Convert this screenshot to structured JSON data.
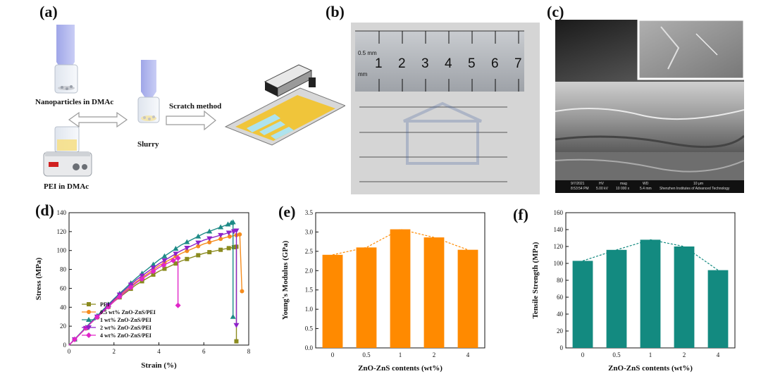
{
  "panels": {
    "a": {
      "label": "(a)",
      "nanoparticles": "Nanoparticles in DMAc",
      "pei": "PEI in DMAc",
      "slurry": "Slurry",
      "scratch": "Scratch method"
    },
    "b": {
      "label": "(b)",
      "ruler_unit_top": "0.5 mm",
      "ruler_unit_bottom": "mm",
      "ruler_numbers": [
        "1",
        "2",
        "3",
        "4",
        "5",
        "6",
        "7"
      ]
    },
    "c": {
      "label": "(c)",
      "sem_date": "9/7/2021",
      "sem_time": "8:53:54 PM",
      "sem_hv_label": "HV",
      "sem_hv": "5.00 kV",
      "sem_mag_label": "mag",
      "sem_mag": "10 000 x",
      "sem_wd_label": "WD",
      "sem_wd": "5.4 mm",
      "sem_scale": "10 μm",
      "sem_institute": "Shenzhen Institutes of Advanced Technology"
    },
    "d": {
      "label": "(d)"
    },
    "e": {
      "label": "(e)"
    },
    "f": {
      "label": "(f)"
    }
  },
  "colors": {
    "pei": "#8a8a1e",
    "c05": "#f58c1e",
    "c1": "#1d8a86",
    "c2": "#8e22c9",
    "c4": "#e026c8",
    "orange_bar": "#ff8a00",
    "teal_bar": "#138a80"
  },
  "chart_data": [
    {
      "id": "d",
      "type": "line",
      "xlabel": "Strain (%)",
      "ylabel": "Stress (MPa)",
      "xlim": [
        0,
        8
      ],
      "ylim": [
        0,
        140
      ],
      "xticks": [
        "0",
        "2",
        "4",
        "6",
        "8"
      ],
      "yticks": [
        "0",
        "20",
        "40",
        "60",
        "80",
        "100",
        "120",
        "140"
      ],
      "legend_position": "bottom-left",
      "series": [
        {
          "name": "PEI",
          "marker": "square",
          "color": "#8a8a1e",
          "x": [
            0,
            1,
            2,
            3,
            4,
            5,
            6,
            7,
            7.45,
            7.45
          ],
          "y": [
            0,
            24,
            46,
            64,
            78,
            89,
            97,
            102,
            104,
            4
          ]
        },
        {
          "name": "0.5 wt% ZnO-ZnS/PEI",
          "marker": "circle",
          "color": "#f58c1e",
          "x": [
            0,
            1,
            2,
            3,
            4,
            5,
            6,
            7,
            7.6,
            7.7
          ],
          "y": [
            0,
            24,
            47,
            67,
            84,
            97,
            107,
            114,
            117,
            57
          ]
        },
        {
          "name": "1 wt% ZnO-ZnS/PEI",
          "marker": "triangle-up",
          "color": "#1d8a86",
          "x": [
            0,
            1,
            2,
            3,
            4,
            5,
            6,
            7,
            7.3,
            7.3
          ],
          "y": [
            0,
            25,
            49,
            71,
            90,
            106,
            118,
            127,
            130,
            30
          ]
        },
        {
          "name": "2 wt% ZnO-ZnS/PEI",
          "marker": "triangle-down",
          "color": "#8e22c9",
          "x": [
            0,
            1,
            2,
            3,
            4,
            5,
            6,
            7,
            7.45,
            7.45
          ],
          "y": [
            0,
            24,
            48,
            69,
            86,
            100,
            111,
            118,
            121,
            21
          ]
        },
        {
          "name": "4 wt% ZnO-ZnS/PEI",
          "marker": "diamond",
          "color": "#e026c8",
          "x": [
            0,
            1,
            2,
            3,
            4,
            4.85,
            4.85
          ],
          "y": [
            0,
            24,
            46,
            66,
            82,
            92,
            42
          ]
        }
      ]
    },
    {
      "id": "e",
      "type": "bar",
      "xlabel": "ZnO-ZnS contents (wt%)",
      "ylabel": "Young's Modulus (GPa)",
      "categories": [
        "0",
        "0.5",
        "1",
        "2",
        "4"
      ],
      "values": [
        2.41,
        2.6,
        3.07,
        2.86,
        2.54
      ],
      "ylim": [
        0,
        3.5
      ],
      "yticks": [
        "0.0",
        "0.5",
        "1.0",
        "1.5",
        "2.0",
        "2.5",
        "3.0",
        "3.5"
      ],
      "trend_line": "dashed"
    },
    {
      "id": "f",
      "type": "bar",
      "xlabel": "ZnO-ZnS contents (wt%)",
      "ylabel": "Tensile Strength (MPa)",
      "categories": [
        "0",
        "0.5",
        "1",
        "2",
        "4"
      ],
      "values": [
        103,
        116,
        128,
        120,
        92
      ],
      "ylim": [
        0,
        160
      ],
      "yticks": [
        "0",
        "20",
        "40",
        "60",
        "80",
        "100",
        "120",
        "140",
        "160"
      ],
      "trend_line": "dashed"
    }
  ]
}
